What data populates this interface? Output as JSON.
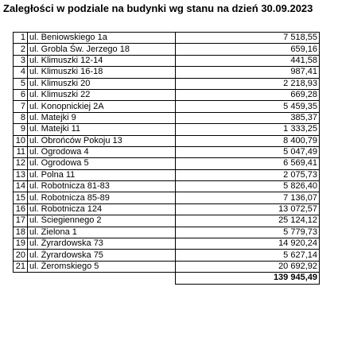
{
  "title": "Zaległości w podziale na budynki wg stanu na dzień 30.09.2023",
  "rows": [
    {
      "no": "1",
      "address": "ul. Beniowskiego 1a",
      "amount": "7 518,55"
    },
    {
      "no": "2",
      "address": "ul. Grobla Św. Jerzego 18",
      "amount": "659,16"
    },
    {
      "no": "3",
      "address": "ul. Klimuszki 12-14",
      "amount": "441,58"
    },
    {
      "no": "4",
      "address": "ul. Klimuszki 16-18",
      "amount": "987,41"
    },
    {
      "no": "5",
      "address": "ul. Klimuszki 20",
      "amount": "2 218,93"
    },
    {
      "no": "6",
      "address": "ul. Klimuszki 22",
      "amount": "669,28"
    },
    {
      "no": "7",
      "address": "ul. Konopnickiej 2A",
      "amount": "5 459,35"
    },
    {
      "no": "8",
      "address": "ul. Matejki 9",
      "amount": "385,37"
    },
    {
      "no": "9",
      "address": "ul. Matejki 11",
      "amount": "1 333,25"
    },
    {
      "no": "10",
      "address": "ul. Obrońców Pokoju 13",
      "amount": "8 400,79"
    },
    {
      "no": "11",
      "address": "ul. Ogrodowa 4",
      "amount": "5 047,49"
    },
    {
      "no": "12",
      "address": "ul. Ogrodowa 5",
      "amount": "6 569,41"
    },
    {
      "no": "13",
      "address": "ul. Polna 11",
      "amount": "2 075,73"
    },
    {
      "no": "14",
      "address": "ul. Robotnicza 81-83",
      "amount": "5 826,40"
    },
    {
      "no": "15",
      "address": "ul. Robotnicza 85-89",
      "amount": "7 136,07"
    },
    {
      "no": "16",
      "address": "ul. Robotnicza 124",
      "amount": "13 072,57"
    },
    {
      "no": "17",
      "address": "ul. Ściegiennego 2",
      "amount": "25 124,12"
    },
    {
      "no": "18",
      "address": "ul. Zielona 1",
      "amount": "5 779,73"
    },
    {
      "no": "19",
      "address": "ul. Żyrardowska 73",
      "amount": "14 920,24"
    },
    {
      "no": "20",
      "address": "ul. Żyrardowska 75",
      "amount": "5 627,14"
    },
    {
      "no": "21",
      "address": "ul. Żeromskiego 5",
      "amount": "20 692,92"
    }
  ],
  "total": "139 945,49"
}
